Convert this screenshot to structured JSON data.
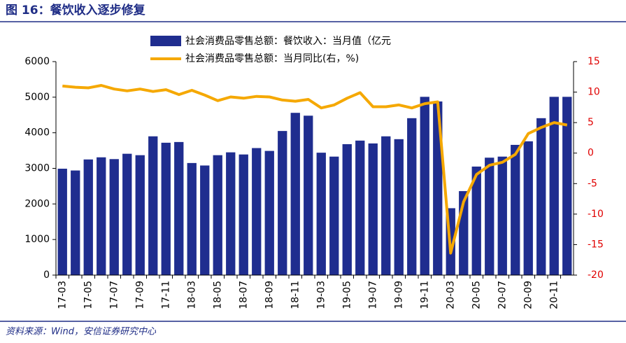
{
  "chart_data": {
    "type": "bar_line",
    "title": "图 16：餐饮收入逐步修复",
    "source": "资料来源：Wind，安信证券研究中心",
    "categories": [
      "17-03",
      null,
      "17-05",
      null,
      "17-07",
      null,
      "17-09",
      null,
      "17-11",
      null,
      "18-03",
      null,
      "18-05",
      null,
      "18-07",
      null,
      "18-09",
      null,
      "18-11",
      null,
      "19-03",
      null,
      "19-05",
      null,
      "19-07",
      null,
      "19-09",
      null,
      "19-11",
      null,
      "20-03",
      null,
      "20-05",
      null,
      "20-07",
      null,
      "20-09",
      null,
      "20-11",
      null
    ],
    "series": [
      {
        "name": "社会消费品零售总额：餐饮收入：当月值（亿元",
        "color": "#1f2d8f",
        "kind": "bar",
        "values": [
          2990,
          2940,
          3250,
          3310,
          3260,
          3410,
          3370,
          3900,
          3720,
          3740,
          3150,
          3080,
          3370,
          3450,
          3390,
          3570,
          3490,
          4050,
          4560,
          4480,
          3440,
          3330,
          3680,
          3780,
          3700,
          3900,
          3820,
          4410,
          5010,
          4880,
          1880,
          2360,
          3050,
          3300,
          3330,
          3660,
          3760,
          4410,
          5010,
          5010
        ]
      },
      {
        "name": "社会消费品零售总额：当月同比(右，%)",
        "color": "#f5a800",
        "kind": "line",
        "axis": "y2",
        "values": [
          11.0,
          10.8,
          10.7,
          11.1,
          10.5,
          10.2,
          10.5,
          10.1,
          10.4,
          9.6,
          10.3,
          9.5,
          8.6,
          9.2,
          9.0,
          9.3,
          9.2,
          8.7,
          8.5,
          8.8,
          7.4,
          7.9,
          9.0,
          9.9,
          7.6,
          7.6,
          7.9,
          7.4,
          8.1,
          8.4,
          -16.4,
          -8.0,
          -3.5,
          -2.0,
          -1.5,
          -0.2,
          3.2,
          4.2,
          5.0,
          4.6
        ]
      }
    ],
    "ylim": [
      0,
      6000
    ],
    "yticks": [
      0,
      1000,
      2000,
      3000,
      4000,
      5000,
      6000
    ],
    "y2lim": [
      -20,
      15
    ],
    "y2ticks": [
      -20,
      -15,
      -10,
      -5,
      0,
      5,
      10,
      15
    ]
  }
}
